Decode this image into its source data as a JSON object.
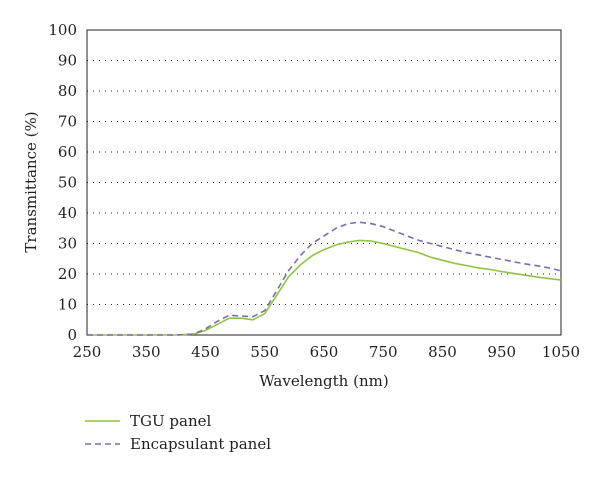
{
  "chart_data": {
    "type": "line",
    "title": "",
    "xlabel": "Wavelength (nm)",
    "ylabel": "Transmittance (%)",
    "xlim": [
      250,
      1050
    ],
    "ylim": [
      0,
      100
    ],
    "xticks": [
      250,
      350,
      450,
      550,
      650,
      750,
      850,
      950,
      1050
    ],
    "yticks": [
      0,
      10,
      20,
      30,
      40,
      50,
      60,
      70,
      80,
      90,
      100
    ],
    "grid": "horizontal-dotted",
    "legend_position": "bottom-left",
    "series": [
      {
        "name": "TGU panel",
        "color": "#8dc63f",
        "style": "solid",
        "x": [
          250,
          300,
          350,
          400,
          430,
          450,
          470,
          490,
          510,
          530,
          550,
          570,
          590,
          610,
          630,
          650,
          670,
          690,
          710,
          730,
          750,
          770,
          790,
          810,
          830,
          850,
          870,
          890,
          910,
          930,
          950,
          970,
          990,
          1010,
          1030,
          1050
        ],
        "y": [
          0,
          0,
          0,
          0,
          0.3,
          1.5,
          3.5,
          5.5,
          5.5,
          5,
          7,
          13,
          19,
          23,
          26,
          28,
          29.5,
          30.5,
          31,
          30.8,
          30,
          29,
          28,
          27,
          25.5,
          24.5,
          23.5,
          22.8,
          22,
          21.5,
          20.8,
          20.2,
          19.6,
          19,
          18.5,
          18
        ]
      },
      {
        "name": "Encapsulant panel",
        "color": "#7d6bb0",
        "style": "dashed",
        "x": [
          250,
          300,
          350,
          400,
          430,
          450,
          470,
          490,
          510,
          530,
          550,
          570,
          590,
          610,
          630,
          650,
          670,
          690,
          710,
          730,
          750,
          770,
          790,
          810,
          830,
          850,
          870,
          890,
          910,
          930,
          950,
          970,
          990,
          1010,
          1030,
          1050
        ],
        "y": [
          0,
          0,
          0,
          0,
          0.3,
          2,
          4.5,
          6.5,
          6.2,
          6,
          8,
          14.5,
          21,
          26,
          30,
          32.5,
          35,
          36.5,
          37,
          36.5,
          35.5,
          34,
          32.5,
          31,
          30,
          29,
          28,
          27,
          26.3,
          25.5,
          24.8,
          24,
          23.3,
          22.7,
          22,
          21
        ]
      }
    ]
  }
}
